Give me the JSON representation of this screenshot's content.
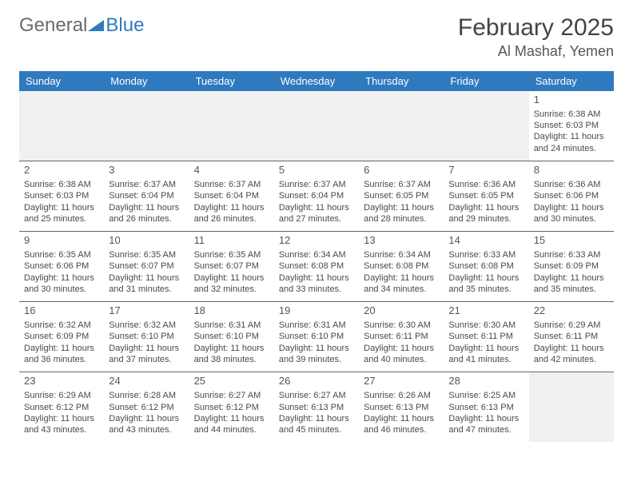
{
  "logo": {
    "part1": "General",
    "part2": "Blue"
  },
  "title": "February 2025",
  "location": "Al Mashaf, Yemen",
  "colors": {
    "header_bg": "#2f7abf",
    "header_text": "#ffffff",
    "border": "#5b6770",
    "body_text": "#4a4a4a",
    "empty_bg": "#f0f0f0"
  },
  "weekdays": [
    "Sunday",
    "Monday",
    "Tuesday",
    "Wednesday",
    "Thursday",
    "Friday",
    "Saturday"
  ],
  "first_weekday_index": 6,
  "days": [
    {
      "n": 1,
      "sunrise": "6:38 AM",
      "sunset": "6:03 PM",
      "daylight": "11 hours and 24 minutes."
    },
    {
      "n": 2,
      "sunrise": "6:38 AM",
      "sunset": "6:03 PM",
      "daylight": "11 hours and 25 minutes."
    },
    {
      "n": 3,
      "sunrise": "6:37 AM",
      "sunset": "6:04 PM",
      "daylight": "11 hours and 26 minutes."
    },
    {
      "n": 4,
      "sunrise": "6:37 AM",
      "sunset": "6:04 PM",
      "daylight": "11 hours and 26 minutes."
    },
    {
      "n": 5,
      "sunrise": "6:37 AM",
      "sunset": "6:04 PM",
      "daylight": "11 hours and 27 minutes."
    },
    {
      "n": 6,
      "sunrise": "6:37 AM",
      "sunset": "6:05 PM",
      "daylight": "11 hours and 28 minutes."
    },
    {
      "n": 7,
      "sunrise": "6:36 AM",
      "sunset": "6:05 PM",
      "daylight": "11 hours and 29 minutes."
    },
    {
      "n": 8,
      "sunrise": "6:36 AM",
      "sunset": "6:06 PM",
      "daylight": "11 hours and 30 minutes."
    },
    {
      "n": 9,
      "sunrise": "6:35 AM",
      "sunset": "6:06 PM",
      "daylight": "11 hours and 30 minutes."
    },
    {
      "n": 10,
      "sunrise": "6:35 AM",
      "sunset": "6:07 PM",
      "daylight": "11 hours and 31 minutes."
    },
    {
      "n": 11,
      "sunrise": "6:35 AM",
      "sunset": "6:07 PM",
      "daylight": "11 hours and 32 minutes."
    },
    {
      "n": 12,
      "sunrise": "6:34 AM",
      "sunset": "6:08 PM",
      "daylight": "11 hours and 33 minutes."
    },
    {
      "n": 13,
      "sunrise": "6:34 AM",
      "sunset": "6:08 PM",
      "daylight": "11 hours and 34 minutes."
    },
    {
      "n": 14,
      "sunrise": "6:33 AM",
      "sunset": "6:08 PM",
      "daylight": "11 hours and 35 minutes."
    },
    {
      "n": 15,
      "sunrise": "6:33 AM",
      "sunset": "6:09 PM",
      "daylight": "11 hours and 35 minutes."
    },
    {
      "n": 16,
      "sunrise": "6:32 AM",
      "sunset": "6:09 PM",
      "daylight": "11 hours and 36 minutes."
    },
    {
      "n": 17,
      "sunrise": "6:32 AM",
      "sunset": "6:10 PM",
      "daylight": "11 hours and 37 minutes."
    },
    {
      "n": 18,
      "sunrise": "6:31 AM",
      "sunset": "6:10 PM",
      "daylight": "11 hours and 38 minutes."
    },
    {
      "n": 19,
      "sunrise": "6:31 AM",
      "sunset": "6:10 PM",
      "daylight": "11 hours and 39 minutes."
    },
    {
      "n": 20,
      "sunrise": "6:30 AM",
      "sunset": "6:11 PM",
      "daylight": "11 hours and 40 minutes."
    },
    {
      "n": 21,
      "sunrise": "6:30 AM",
      "sunset": "6:11 PM",
      "daylight": "11 hours and 41 minutes."
    },
    {
      "n": 22,
      "sunrise": "6:29 AM",
      "sunset": "6:11 PM",
      "daylight": "11 hours and 42 minutes."
    },
    {
      "n": 23,
      "sunrise": "6:29 AM",
      "sunset": "6:12 PM",
      "daylight": "11 hours and 43 minutes."
    },
    {
      "n": 24,
      "sunrise": "6:28 AM",
      "sunset": "6:12 PM",
      "daylight": "11 hours and 43 minutes."
    },
    {
      "n": 25,
      "sunrise": "6:27 AM",
      "sunset": "6:12 PM",
      "daylight": "11 hours and 44 minutes."
    },
    {
      "n": 26,
      "sunrise": "6:27 AM",
      "sunset": "6:13 PM",
      "daylight": "11 hours and 45 minutes."
    },
    {
      "n": 27,
      "sunrise": "6:26 AM",
      "sunset": "6:13 PM",
      "daylight": "11 hours and 46 minutes."
    },
    {
      "n": 28,
      "sunrise": "6:25 AM",
      "sunset": "6:13 PM",
      "daylight": "11 hours and 47 minutes."
    }
  ],
  "labels": {
    "sunrise": "Sunrise: ",
    "sunset": "Sunset: ",
    "daylight": "Daylight: "
  }
}
